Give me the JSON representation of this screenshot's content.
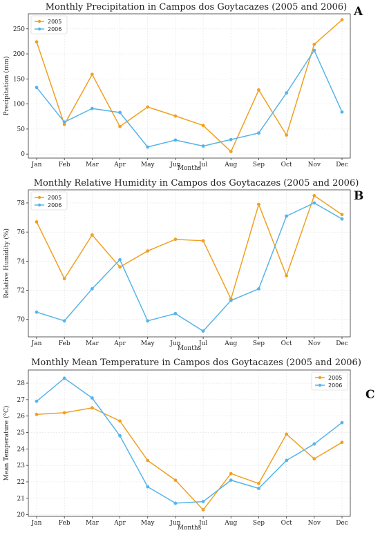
{
  "chart_data": [
    {
      "type": "line",
      "panel": "A",
      "title": "Monthly Precipitation in Campos dos Goytacazes (2005 and 2006)",
      "xlabel": "Months",
      "ylabel": "Precipitation (mm)",
      "categories": [
        "Jan",
        "Feb",
        "Mar",
        "Apr",
        "May",
        "Jun",
        "Jul",
        "Aug",
        "Sep",
        "Oct",
        "Nov",
        "Dec"
      ],
      "ylim": [
        -8,
        280
      ],
      "yticks": [
        0,
        50,
        100,
        150,
        200,
        250
      ],
      "legend_position": "top-left",
      "grid": true,
      "series": [
        {
          "name": "2005",
          "color": "#F0A020",
          "values": [
            224,
            59,
            159,
            55,
            94,
            76,
            57,
            5,
            128,
            38,
            219,
            268
          ]
        },
        {
          "name": "2006",
          "color": "#56B4E9",
          "values": [
            133,
            64,
            91,
            83,
            14,
            28,
            16,
            29,
            42,
            122,
            207,
            84
          ]
        }
      ]
    },
    {
      "type": "line",
      "panel": "B",
      "title": "Monthly Relative Humidity in Campos dos Goytacazes (2005 and 2006)",
      "xlabel": "Months",
      "ylabel": "Relative Humidity (%)",
      "categories": [
        "Jan",
        "Feb",
        "Mar",
        "Apr",
        "May",
        "Jun",
        "Jul",
        "Aug",
        "Sep",
        "Oct",
        "Nov",
        "Dec"
      ],
      "ylim": [
        68.8,
        78.9
      ],
      "yticks": [
        70,
        72,
        74,
        76,
        78
      ],
      "legend_position": "top-left",
      "grid": true,
      "series": [
        {
          "name": "2005",
          "color": "#F0A020",
          "values": [
            76.7,
            72.8,
            75.8,
            73.6,
            74.7,
            75.5,
            75.4,
            71.4,
            77.9,
            73.0,
            78.5,
            77.2
          ]
        },
        {
          "name": "2006",
          "color": "#56B4E9",
          "values": [
            70.5,
            69.9,
            72.1,
            74.1,
            69.9,
            70.4,
            69.2,
            71.3,
            72.1,
            77.1,
            78.0,
            76.9
          ]
        }
      ]
    },
    {
      "type": "line",
      "panel": "C",
      "title": "Monthly Mean Temperature in Campos dos Goytacazes (2005 and 2006)",
      "xlabel": "Months",
      "ylabel": "Mean Temperature (°C)",
      "categories": [
        "Jan",
        "Feb",
        "Mar",
        "Apr",
        "May",
        "Jun",
        "Jul",
        "Aug",
        "Sep",
        "Oct",
        "Nov",
        "Dec"
      ],
      "ylim": [
        19.9,
        28.8
      ],
      "yticks": [
        20,
        21,
        22,
        23,
        24,
        25,
        26,
        27,
        28
      ],
      "legend_position": "top-right",
      "grid": true,
      "series": [
        {
          "name": "2005",
          "color": "#F0A020",
          "values": [
            26.1,
            26.2,
            26.5,
            25.7,
            23.3,
            22.1,
            20.3,
            22.5,
            21.9,
            24.9,
            23.4,
            24.4
          ]
        },
        {
          "name": "2006",
          "color": "#56B4E9",
          "values": [
            26.9,
            28.3,
            27.1,
            24.8,
            21.7,
            20.7,
            20.8,
            22.1,
            21.6,
            23.3,
            24.3,
            25.6
          ]
        }
      ]
    }
  ]
}
